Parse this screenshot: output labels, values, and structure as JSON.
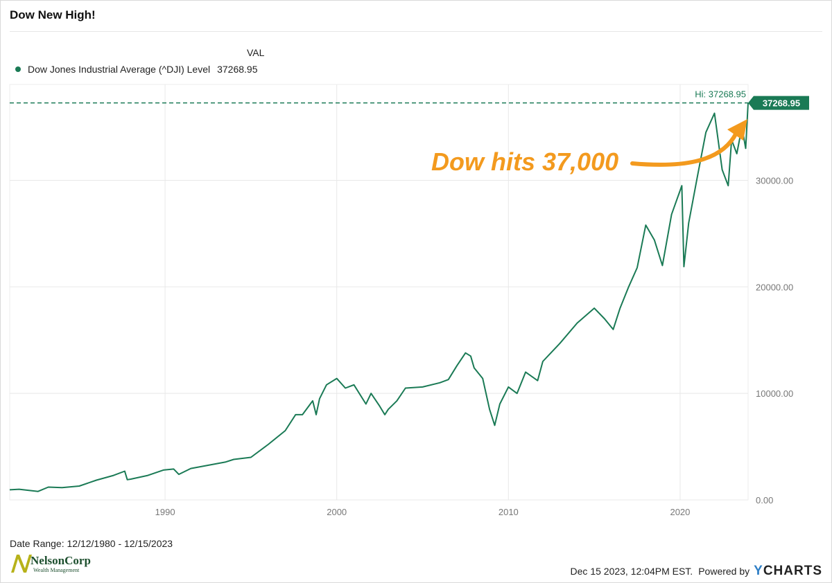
{
  "title": "Dow New High!",
  "legend": {
    "column_header": "VAL",
    "series_label": "Dow Jones Industrial Average (^DJI) Level",
    "series_value": "37268.95"
  },
  "footer": {
    "date_range": "Date Range: 12/12/1980 - 12/15/2023",
    "timestamp": "Dec 15 2023, 12:04PM EST.",
    "powered_by": "Powered by",
    "brand_y": "Y",
    "brand_rest": "CHARTS"
  },
  "logo": {
    "name": "NelsonCorp",
    "tagline": "Wealth Management"
  },
  "colors": {
    "series": "#1a7a55",
    "annotation": "#f39a1e",
    "grid": "#e8e8e8",
    "axis_text": "#777777"
  },
  "chart_data": {
    "type": "line",
    "title": "Dow New High!",
    "x_axis": {
      "min": 1980.95,
      "max": 2023.96,
      "ticks": [
        1990,
        2000,
        2010,
        2020
      ]
    },
    "y_axis": {
      "min": 0,
      "max": 39000,
      "ticks": [
        0,
        10000,
        20000,
        30000
      ],
      "tick_labels": [
        "0.00",
        "10000.00",
        "20000.00",
        "30000.00"
      ],
      "position": "right"
    },
    "grid": true,
    "legend_position": "top-left",
    "hi_label": "Hi: 37268.95",
    "hi_value": 37268.95,
    "last_value_label": "37268.95",
    "annotation": "Dow hits 37,000",
    "series": [
      {
        "name": "Dow Jones Industrial Average (^DJI) Level",
        "x": [
          1980.95,
          1981.5,
          1982.6,
          1983.2,
          1984.0,
          1985.0,
          1986.0,
          1987.0,
          1987.65,
          1987.8,
          1988.0,
          1989.0,
          1989.9,
          1990.5,
          1990.8,
          1991.5,
          1992.5,
          1993.5,
          1994.0,
          1995.0,
          1996.0,
          1997.0,
          1997.6,
          1998.0,
          1998.6,
          1998.8,
          1999.0,
          1999.4,
          2000.0,
          2000.5,
          2001.0,
          2001.7,
          2002.0,
          2002.5,
          2002.8,
          2003.0,
          2003.5,
          2004.0,
          2005.0,
          2006.0,
          2006.5,
          2007.0,
          2007.5,
          2007.8,
          2008.0,
          2008.5,
          2008.9,
          2009.2,
          2009.5,
          2010.0,
          2010.5,
          2011.0,
          2011.7,
          2012.0,
          2013.0,
          2014.0,
          2015.0,
          2015.6,
          2016.1,
          2016.5,
          2017.0,
          2017.5,
          2018.0,
          2018.5,
          2018.97,
          2019.5,
          2020.1,
          2020.22,
          2020.5,
          2021.0,
          2021.5,
          2022.0,
          2022.45,
          2022.8,
          2023.0,
          2023.3,
          2023.6,
          2023.82,
          2023.96
        ],
        "values": [
          950,
          1000,
          800,
          1200,
          1150,
          1300,
          1850,
          2300,
          2700,
          1900,
          1950,
          2300,
          2800,
          2900,
          2400,
          2950,
          3250,
          3550,
          3800,
          4000,
          5200,
          6500,
          8000,
          8000,
          9300,
          8000,
          9500,
          10800,
          11400,
          10500,
          10800,
          9000,
          10000,
          8800,
          8000,
          8500,
          9300,
          10500,
          10600,
          11000,
          11300,
          12600,
          13800,
          13500,
          12400,
          11400,
          8500,
          7000,
          9000,
          10600,
          10000,
          12000,
          11200,
          13000,
          14700,
          16600,
          18000,
          17000,
          16000,
          18000,
          20000,
          21800,
          25800,
          24400,
          22000,
          26800,
          29500,
          21900,
          26000,
          30300,
          34500,
          36300,
          31000,
          29500,
          33800,
          32500,
          35000,
          33000,
          37268.95
        ]
      }
    ]
  }
}
